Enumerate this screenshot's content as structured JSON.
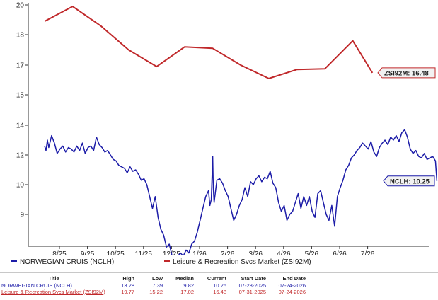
{
  "colors": {
    "ncl": "#1c1ca8",
    "zsi": "#c0282a",
    "axis": "#333333",
    "grid": "#e3e3e3",
    "callout_fill": "#f2f2f2"
  },
  "chart_data": {
    "type": "line",
    "y_axis": {
      "position": "left",
      "ticks": [
        {
          "label": "9",
          "value": 9
        },
        {
          "label": "10",
          "value": 10
        },
        {
          "label": "12",
          "value": 12
        },
        {
          "label": "14",
          "value": 14
        },
        {
          "label": "15",
          "value": 15
        },
        {
          "label": "17",
          "value": 17
        },
        {
          "label": "18",
          "value": 18
        },
        {
          "label": "20",
          "value": 20
        }
      ]
    },
    "x_axis": {
      "ticks": [
        "8/25",
        "9/25",
        "10/25",
        "11/25",
        "12/25",
        "1/26",
        "2/26",
        "3/26",
        "4/26",
        "5/26",
        "6/26",
        "7/26"
      ]
    },
    "grid": false,
    "series": [
      {
        "name": "NORWEGIAN CRUIS (NCLH)",
        "key": "ncl",
        "callout": "NCLH: 10.25",
        "points": [
          [
            0.0,
            12.6
          ],
          [
            0.05,
            12.3
          ],
          [
            0.1,
            13.0
          ],
          [
            0.15,
            12.5
          ],
          [
            0.25,
            13.3
          ],
          [
            0.35,
            12.8
          ],
          [
            0.45,
            12.1
          ],
          [
            0.55,
            12.4
          ],
          [
            0.65,
            12.6
          ],
          [
            0.75,
            12.2
          ],
          [
            0.85,
            12.5
          ],
          [
            0.95,
            12.4
          ],
          [
            1.05,
            12.2
          ],
          [
            1.15,
            12.6
          ],
          [
            1.25,
            12.3
          ],
          [
            1.35,
            12.8
          ],
          [
            1.45,
            12.1
          ],
          [
            1.55,
            12.5
          ],
          [
            1.65,
            12.6
          ],
          [
            1.75,
            12.3
          ],
          [
            1.85,
            13.2
          ],
          [
            1.95,
            12.7
          ],
          [
            2.05,
            12.5
          ],
          [
            2.15,
            12.2
          ],
          [
            2.25,
            12.3
          ],
          [
            2.35,
            12.0
          ],
          [
            2.45,
            11.7
          ],
          [
            2.55,
            11.6
          ],
          [
            2.65,
            11.3
          ],
          [
            2.75,
            11.2
          ],
          [
            2.85,
            11.1
          ],
          [
            2.95,
            10.8
          ],
          [
            3.05,
            11.2
          ],
          [
            3.15,
            10.9
          ],
          [
            3.25,
            11.0
          ],
          [
            3.35,
            10.7
          ],
          [
            3.45,
            10.3
          ],
          [
            3.55,
            10.4
          ],
          [
            3.65,
            10.0
          ],
          [
            3.75,
            9.6
          ],
          [
            3.85,
            9.2
          ],
          [
            3.95,
            9.6
          ],
          [
            4.05,
            8.9
          ],
          [
            4.15,
            8.5
          ],
          [
            4.25,
            8.3
          ],
          [
            4.35,
            7.9
          ],
          [
            4.45,
            8.0
          ],
          [
            4.55,
            7.6
          ],
          [
            4.65,
            7.5
          ],
          [
            4.75,
            7.6
          ],
          [
            4.85,
            7.7
          ],
          [
            4.95,
            7.6
          ],
          [
            5.05,
            7.8
          ],
          [
            5.15,
            7.7
          ],
          [
            5.25,
            8.0
          ],
          [
            5.35,
            8.1
          ],
          [
            5.45,
            8.4
          ],
          [
            5.55,
            8.8
          ],
          [
            5.65,
            9.2
          ],
          [
            5.75,
            9.6
          ],
          [
            5.85,
            9.8
          ],
          [
            5.9,
            9.3
          ],
          [
            5.95,
            9.5
          ],
          [
            6.0,
            11.9
          ],
          [
            6.02,
            9.9
          ],
          [
            6.05,
            9.4
          ],
          [
            6.15,
            10.3
          ],
          [
            6.25,
            10.4
          ],
          [
            6.35,
            10.1
          ],
          [
            6.45,
            9.8
          ],
          [
            6.55,
            9.6
          ],
          [
            6.65,
            9.2
          ],
          [
            6.75,
            8.8
          ],
          [
            6.85,
            9.0
          ],
          [
            6.95,
            9.3
          ],
          [
            7.05,
            9.5
          ],
          [
            7.15,
            9.9
          ],
          [
            7.25,
            9.6
          ],
          [
            7.35,
            10.2
          ],
          [
            7.45,
            10.0
          ],
          [
            7.55,
            10.4
          ],
          [
            7.65,
            10.6
          ],
          [
            7.75,
            10.2
          ],
          [
            7.85,
            10.5
          ],
          [
            7.95,
            10.4
          ],
          [
            8.05,
            10.9
          ],
          [
            8.15,
            10.1
          ],
          [
            8.25,
            9.9
          ],
          [
            8.35,
            9.4
          ],
          [
            8.45,
            9.1
          ],
          [
            8.55,
            9.3
          ],
          [
            8.65,
            8.8
          ],
          [
            8.75,
            9.0
          ],
          [
            8.85,
            9.1
          ],
          [
            8.95,
            9.4
          ],
          [
            9.05,
            9.7
          ],
          [
            9.15,
            9.2
          ],
          [
            9.25,
            9.6
          ],
          [
            9.35,
            9.3
          ],
          [
            9.45,
            9.6
          ],
          [
            9.55,
            9.1
          ],
          [
            9.65,
            8.9
          ],
          [
            9.75,
            9.7
          ],
          [
            9.85,
            9.8
          ],
          [
            9.95,
            9.4
          ],
          [
            10.05,
            9.0
          ],
          [
            10.15,
            8.8
          ],
          [
            10.25,
            9.3
          ],
          [
            10.35,
            8.6
          ],
          [
            10.45,
            9.6
          ],
          [
            10.55,
            9.9
          ],
          [
            10.65,
            10.3
          ],
          [
            10.75,
            11.0
          ],
          [
            10.85,
            11.3
          ],
          [
            10.95,
            11.8
          ],
          [
            11.05,
            12.0
          ],
          [
            11.15,
            12.3
          ],
          [
            11.25,
            12.5
          ],
          [
            11.35,
            12.8
          ],
          [
            11.45,
            12.6
          ],
          [
            11.55,
            12.4
          ],
          [
            11.65,
            12.9
          ],
          [
            11.75,
            12.2
          ],
          [
            11.85,
            11.9
          ],
          [
            11.95,
            12.5
          ],
          [
            12.05,
            12.8
          ],
          [
            12.15,
            13.0
          ],
          [
            12.25,
            12.7
          ],
          [
            12.35,
            13.2
          ],
          [
            12.45,
            13.0
          ],
          [
            12.55,
            13.3
          ],
          [
            12.65,
            12.9
          ],
          [
            12.75,
            13.5
          ],
          [
            12.85,
            13.7
          ],
          [
            12.95,
            13.2
          ],
          [
            13.05,
            12.4
          ],
          [
            13.15,
            12.1
          ],
          [
            13.25,
            12.3
          ],
          [
            13.35,
            11.9
          ],
          [
            13.45,
            11.8
          ],
          [
            13.55,
            12.1
          ],
          [
            13.65,
            11.7
          ],
          [
            13.75,
            11.8
          ],
          [
            13.85,
            11.9
          ],
          [
            13.95,
            11.6
          ],
          [
            14.0,
            10.25
          ]
        ]
      },
      {
        "name": "Leisure & Recreation Svcs Market (ZSI92M)",
        "key": "zsi",
        "callout": "ZSI92M: 16.48",
        "points": [
          [
            0.0,
            18.9
          ],
          [
            1.0,
            19.9
          ],
          [
            2.0,
            18.6
          ],
          [
            3.0,
            17.5
          ],
          [
            4.0,
            16.9
          ],
          [
            5.0,
            17.6
          ],
          [
            6.0,
            17.55
          ],
          [
            7.0,
            17.0
          ],
          [
            8.0,
            16.1
          ],
          [
            9.0,
            16.7
          ],
          [
            10.0,
            16.75
          ],
          [
            11.0,
            17.8
          ],
          [
            11.7,
            16.48
          ]
        ]
      }
    ]
  },
  "legend": [
    {
      "key": "ncl",
      "label": "NORWEGIAN CRUIS (NCLH)"
    },
    {
      "key": "zsi",
      "label": "Leisure & Recreation Svcs Market (ZSI92M)"
    }
  ],
  "stats_table": {
    "headers": {
      "title": "Title",
      "high": "High",
      "low": "Low",
      "median": "Median",
      "current": "Current",
      "start": "Start Date",
      "end": "End Date"
    },
    "rows": [
      {
        "key": "ncl",
        "title": "NORWEGIAN CRUIS (NCLH)",
        "high": "13.28",
        "low": "7.39",
        "median": "9.82",
        "current": "10.25",
        "start": "07-28-2025",
        "end": "07-24-2026"
      },
      {
        "key": "zsi",
        "title": "Leisure & Recreation Svcs Market (ZSI92M)",
        "high": "19.77",
        "low": "15.22",
        "median": "17.02",
        "current": "16.48",
        "start": "07-31-2025",
        "end": "07-24-2026"
      }
    ]
  }
}
